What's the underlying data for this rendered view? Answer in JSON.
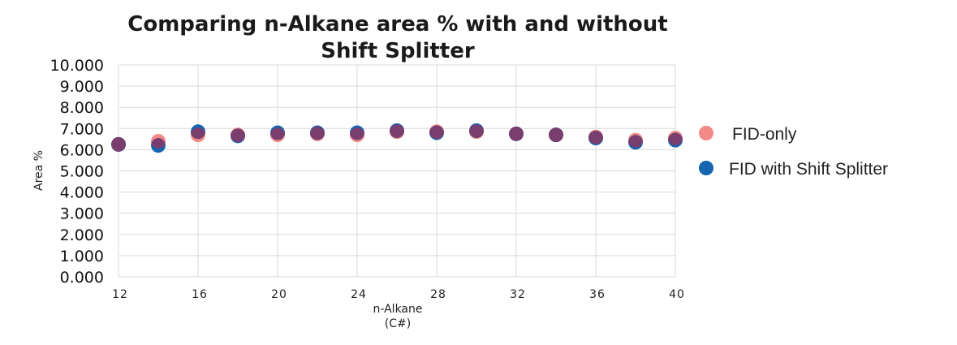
{
  "chart_data": {
    "type": "scatter",
    "title": "Comparing n-Alkane area % with and without Shift Splitter",
    "xlabel_line1": "n-Alkane",
    "xlabel_line2": "(C#)",
    "ylabel": "Area %",
    "xlim": [
      12,
      40
    ],
    "ylim": [
      0,
      10
    ],
    "x_ticks": [
      "12",
      "16",
      "20",
      "24",
      "28",
      "32",
      "36",
      "40"
    ],
    "y_ticks": [
      "0.000",
      "1.000",
      "2.000",
      "3.000",
      "4.000",
      "5.000",
      "6.000",
      "7.000",
      "8.000",
      "9.000",
      "10.000"
    ],
    "grid": true,
    "legend_position": "right",
    "x": [
      12,
      14,
      16,
      18,
      20,
      22,
      24,
      26,
      28,
      30,
      32,
      34,
      36,
      38,
      40
    ],
    "series": [
      {
        "name": "FID-only",
        "color": "#f48a88",
        "values": [
          6.25,
          6.4,
          6.7,
          6.7,
          6.7,
          6.75,
          6.7,
          6.85,
          6.85,
          6.85,
          6.75,
          6.7,
          6.6,
          6.45,
          6.55
        ]
      },
      {
        "name": "FID with Shift Splitter",
        "color": "#1565b0",
        "values": [
          6.25,
          6.2,
          6.85,
          6.65,
          6.8,
          6.8,
          6.8,
          6.9,
          6.8,
          6.9,
          6.75,
          6.7,
          6.55,
          6.35,
          6.45
        ]
      }
    ],
    "overlap_color": "#7a3e6e"
  }
}
